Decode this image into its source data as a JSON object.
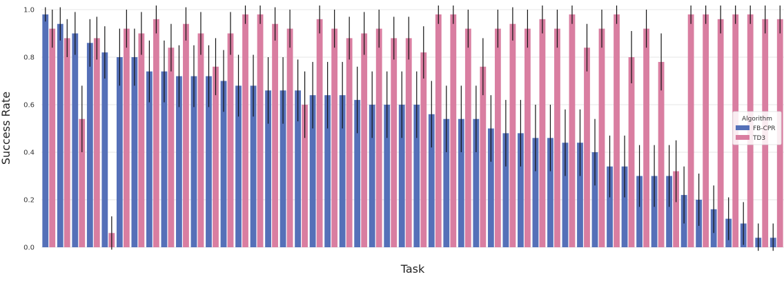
{
  "chart_data": {
    "type": "bar",
    "xlabel": "Task",
    "ylabel": "Success Rate",
    "ylim": [
      0,
      1.0
    ],
    "yticks": [
      "0.0",
      "0.2",
      "0.4",
      "0.6",
      "0.8",
      "1.0"
    ],
    "grid": true,
    "legend": {
      "title": "Algorithm",
      "placement": "right"
    },
    "series": [
      {
        "name": "FB-CPR",
        "color": "#5570b8",
        "values": [
          0.98,
          0.94,
          0.9,
          0.86,
          0.82,
          0.8,
          0.8,
          0.74,
          0.74,
          0.72,
          0.72,
          0.72,
          0.7,
          0.68,
          0.68,
          0.66,
          0.66,
          0.66,
          0.64,
          0.64,
          0.64,
          0.62,
          0.6,
          0.6,
          0.6,
          0.6,
          0.56,
          0.54,
          0.54,
          0.54,
          0.5,
          0.48,
          0.48,
          0.46,
          0.46,
          0.44,
          0.44,
          0.4,
          0.34,
          0.34,
          0.3,
          0.3,
          0.3,
          0.22,
          0.2,
          0.16,
          0.12,
          0.1,
          0.04,
          0.04
        ],
        "err": [
          0.03,
          0.07,
          0.09,
          0.1,
          0.11,
          0.12,
          0.12,
          0.13,
          0.13,
          0.13,
          0.13,
          0.13,
          0.13,
          0.13,
          0.13,
          0.14,
          0.14,
          0.13,
          0.14,
          0.14,
          0.14,
          0.14,
          0.14,
          0.14,
          0.14,
          0.14,
          0.14,
          0.14,
          0.14,
          0.14,
          0.14,
          0.14,
          0.14,
          0.14,
          0.14,
          0.14,
          0.14,
          0.14,
          0.13,
          0.13,
          0.13,
          0.13,
          0.13,
          0.12,
          0.11,
          0.1,
          0.09,
          0.09,
          0.06,
          0.06
        ]
      },
      {
        "name": "TD3",
        "color": "#d97ea1",
        "values": [
          0.92,
          0.88,
          0.54,
          0.88,
          0.06,
          0.92,
          0.9,
          0.96,
          0.84,
          0.94,
          0.9,
          0.76,
          0.9,
          0.98,
          0.98,
          0.94,
          0.92,
          0.6,
          0.96,
          0.92,
          0.88,
          0.9,
          0.92,
          0.88,
          0.88,
          0.82,
          0.98,
          0.98,
          0.92,
          0.76,
          0.92,
          0.94,
          0.92,
          0.96,
          0.92,
          0.98,
          0.84,
          0.92,
          0.98,
          0.8,
          0.92,
          0.78,
          0.32,
          0.98,
          0.98,
          0.96,
          0.98,
          0.98,
          0.96,
          0.96
        ],
        "err": [
          0.08,
          0.08,
          0.14,
          0.09,
          0.07,
          0.08,
          0.09,
          0.06,
          0.1,
          0.07,
          0.09,
          0.12,
          0.09,
          0.04,
          0.04,
          0.07,
          0.08,
          0.14,
          0.06,
          0.08,
          0.09,
          0.09,
          0.08,
          0.09,
          0.09,
          0.11,
          0.04,
          0.04,
          0.08,
          0.12,
          0.08,
          0.07,
          0.08,
          0.06,
          0.08,
          0.04,
          0.1,
          0.08,
          0.04,
          0.11,
          0.08,
          0.12,
          0.13,
          0.04,
          0.04,
          0.06,
          0.04,
          0.04,
          0.06,
          0.06
        ]
      }
    ]
  }
}
